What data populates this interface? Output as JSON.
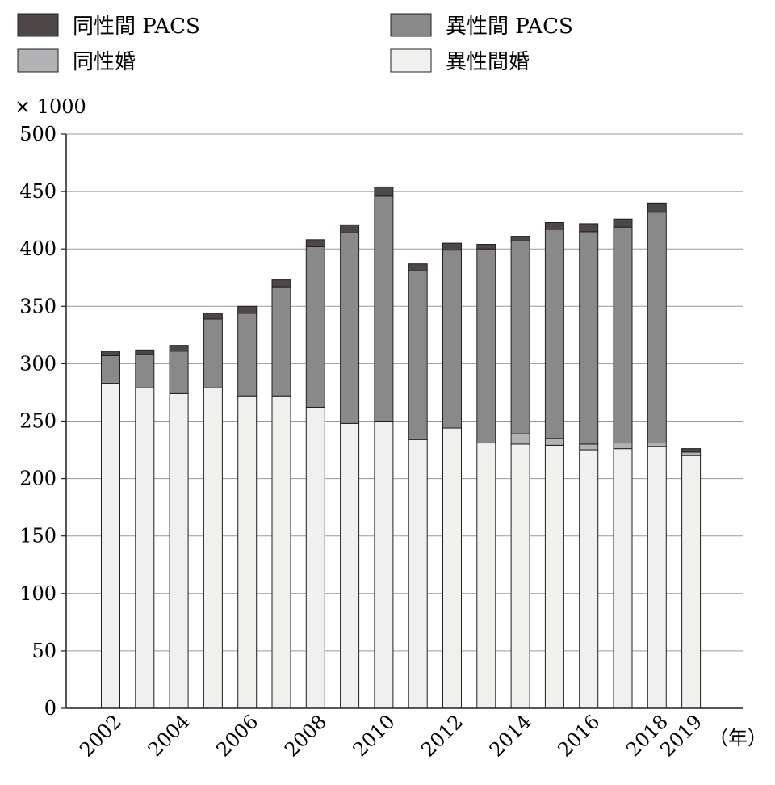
{
  "chart_data": {
    "type": "bar",
    "stacked": true,
    "y_unit_label": "× 1000",
    "x_unit_label": "（年）",
    "ylim": [
      0,
      500
    ],
    "yticks": [
      0,
      50,
      100,
      150,
      200,
      250,
      300,
      350,
      400,
      450,
      500
    ],
    "grid": "horizontal",
    "legend_position": "top",
    "categories": [
      "2002",
      "2003",
      "2004",
      "2005",
      "2006",
      "2007",
      "2008",
      "2009",
      "2010",
      "2011",
      "2012",
      "2013",
      "2014",
      "2015",
      "2016",
      "2017",
      "2018",
      "2019"
    ],
    "x_tick_labels": [
      "2002",
      "",
      "2004",
      "",
      "2006",
      "",
      "2008",
      "",
      "2010",
      "",
      "2012",
      "",
      "2014",
      "",
      "2016",
      "",
      "2018",
      "2019"
    ],
    "series": [
      {
        "name": "異性間婚",
        "color": "#f0f0ef",
        "values": [
          283,
          279,
          274,
          279,
          272,
          272,
          262,
          248,
          250,
          234,
          244,
          231,
          230,
          229,
          225,
          226,
          228,
          220
        ]
      },
      {
        "name": "同性婚",
        "color": "#b1b3b4",
        "values": [
          0,
          0,
          0,
          0,
          0,
          0,
          0,
          0,
          0,
          0,
          0,
          0,
          9,
          6,
          5,
          5,
          3,
          3
        ]
      },
      {
        "name": "異性間 PACS",
        "color": "#898989",
        "values": [
          24,
          29,
          37,
          60,
          72,
          95,
          140,
          166,
          196,
          147,
          155,
          169,
          168,
          182,
          185,
          188,
          201,
          0
        ]
      },
      {
        "name": "同性間 PACS",
        "color": "#4d4748",
        "values": [
          4,
          4,
          5,
          5,
          6,
          6,
          6,
          7,
          8,
          6,
          6,
          4,
          4,
          6,
          7,
          7,
          8,
          3
        ]
      }
    ],
    "legend": [
      {
        "name": "同性間 PACS",
        "color": "#4d4748"
      },
      {
        "name": "異性間 PACS",
        "color": "#898989"
      },
      {
        "name": "同性婚",
        "color": "#b1b3b4"
      },
      {
        "name": "異性間婚",
        "color": "#f0f0ef"
      }
    ]
  }
}
